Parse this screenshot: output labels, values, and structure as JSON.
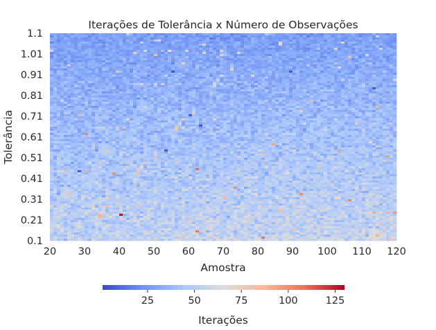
{
  "chart_data": {
    "type": "heatmap",
    "title": "Iterações de Tolerância x Número de Observações",
    "xlabel": "Amostra",
    "ylabel": "Tolerância",
    "x_range": [
      20,
      120
    ],
    "y_range": [
      0.1,
      1.1
    ],
    "x_ticks": [
      "20",
      "30",
      "40",
      "50",
      "60",
      "70",
      "80",
      "90",
      "100",
      "110",
      "120"
    ],
    "y_ticks": [
      "1.1",
      "1.01",
      "0.91",
      "0.81",
      "0.71",
      "0.61",
      "0.51",
      "0.41",
      "0.31",
      "0.21",
      "0.1"
    ],
    "n_cols": 100,
    "n_rows": 100,
    "colormap": "coolwarm",
    "colormap_stops": [
      "#3b4cc0",
      "#6f92f3",
      "#aac7fd",
      "#dddcdc",
      "#f7b89c",
      "#e7745b",
      "#b40426"
    ],
    "colorbar": {
      "label": "Iterações",
      "min": 1,
      "max": 130,
      "ticks": [
        "25",
        "50",
        "75",
        "100",
        "125"
      ]
    },
    "trend": "iteration count rises as tolerance decreases; mostly 20–70 with rare outliers up to ~130",
    "value_range_typical": {
      "at_tolerance_1.1": [
        15,
        40
      ],
      "at_tolerance_0.1": [
        40,
        75
      ]
    },
    "outliers": [
      {
        "sample": 40,
        "tolerance": 0.22,
        "value": 128
      },
      {
        "sample": 62,
        "tolerance": 0.44,
        "value": 110
      },
      {
        "sample": 30,
        "tolerance": 0.62,
        "value": 102
      },
      {
        "sample": 38,
        "tolerance": 0.42,
        "value": 100
      },
      {
        "sample": 55,
        "tolerance": 0.92,
        "value": 4
      },
      {
        "sample": 90,
        "tolerance": 0.92,
        "value": 6
      },
      {
        "sample": 114,
        "tolerance": 0.84,
        "value": 5
      },
      {
        "sample": 53,
        "tolerance": 0.53,
        "value": 5
      },
      {
        "sample": 28,
        "tolerance": 0.43,
        "value": 6
      },
      {
        "sample": 63,
        "tolerance": 0.66,
        "value": 5
      },
      {
        "sample": 60,
        "tolerance": 0.71,
        "value": 7
      }
    ]
  }
}
